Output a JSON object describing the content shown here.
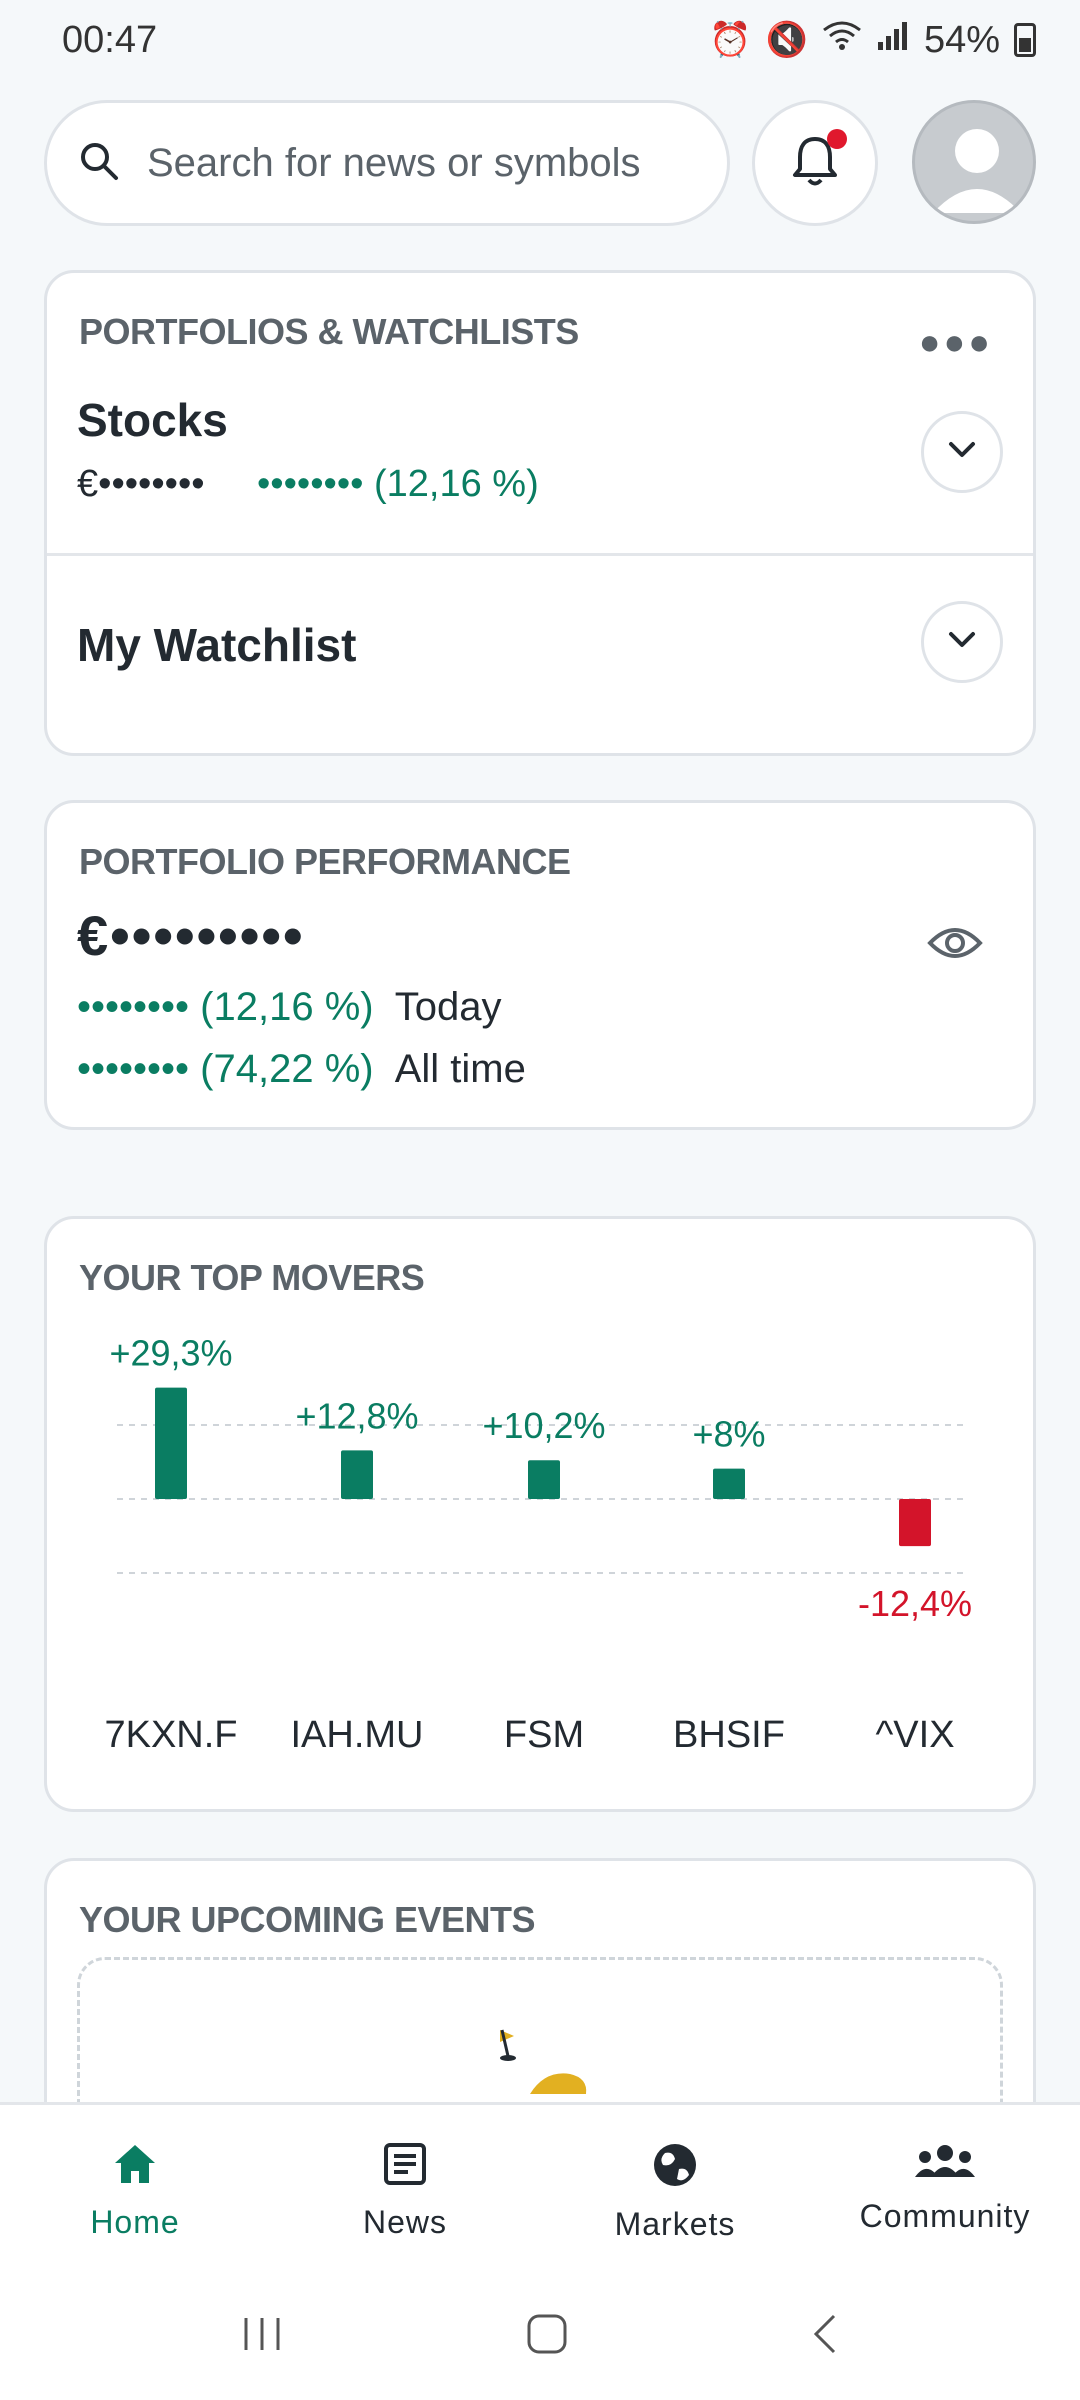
{
  "status": {
    "time": "00:47",
    "battery": "54%"
  },
  "search": {
    "placeholder": "Search for news or symbols"
  },
  "portfolios": {
    "title": "PORTFOLIOS & WATCHLISTS",
    "stocks": {
      "name": "Stocks",
      "value": "€••••••••",
      "change_dots": "••••••••",
      "change_pct": "(12,16 %)"
    },
    "watchlist": {
      "name": "My Watchlist"
    }
  },
  "performance": {
    "title": "PORTFOLIO PERFORMANCE",
    "value": "€•••••••••",
    "today": {
      "dots": "••••••••",
      "pct": "(12,16 %)",
      "label": "Today"
    },
    "all_time": {
      "dots": "••••••••",
      "pct": "(74,22 %)",
      "label": "All time"
    }
  },
  "top_movers": {
    "title": "YOUR TOP MOVERS"
  },
  "chart_data": {
    "type": "bar",
    "title": "YOUR TOP MOVERS",
    "categories": [
      "7KXN.F",
      "IAH.MU",
      "FSM",
      "BHSIF",
      "^VIX"
    ],
    "values": [
      29.3,
      12.8,
      10.2,
      8,
      -12.4
    ],
    "labels": [
      "+29,3%",
      "+12,8%",
      "+10,2%",
      "+8%",
      "-12,4%"
    ],
    "grid": true,
    "colors": {
      "positive": "#0a7d62",
      "negative": "#d3142a"
    }
  },
  "events": {
    "title": "YOUR UPCOMING EVENTS"
  },
  "nav": {
    "items": [
      {
        "label": "Home",
        "icon": "home-icon",
        "active": true
      },
      {
        "label": "News",
        "icon": "news-icon",
        "active": false
      },
      {
        "label": "Markets",
        "icon": "globe-icon",
        "active": false
      },
      {
        "label": "Community",
        "icon": "community-icon",
        "active": false
      }
    ]
  },
  "colors": {
    "accent": "#0a7d62",
    "negative": "#d3142a",
    "notification": "#e0182d"
  }
}
